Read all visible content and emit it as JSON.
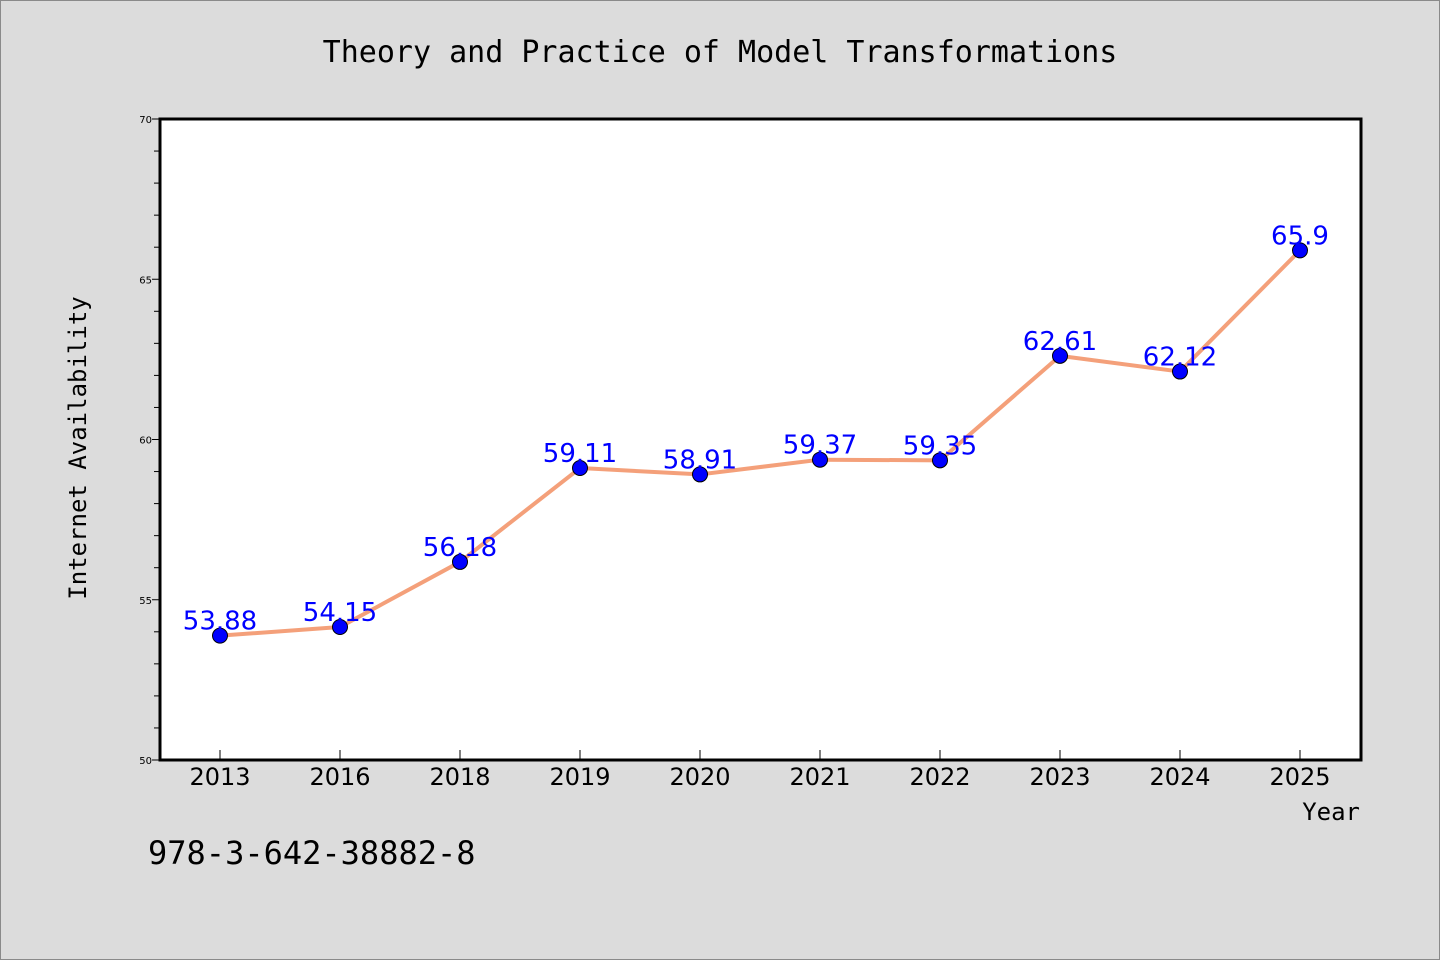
{
  "chart_data": {
    "type": "line",
    "title": "Theory and Practice of Model Transformations",
    "xlabel": "Year",
    "ylabel": "Internet Availability",
    "categories": [
      "2013",
      "2016",
      "2018",
      "2019",
      "2020",
      "2021",
      "2022",
      "2023",
      "2024",
      "2025"
    ],
    "series": [
      {
        "values": [
          53.88,
          54.15,
          56.18,
          59.11,
          58.91,
          59.37,
          59.35,
          62.61,
          62.12,
          65.9
        ],
        "labels": [
          "53.88",
          "54.15",
          "56.18",
          "59.11",
          "58.91",
          "59.37",
          "59.35",
          "62.61",
          "62.12",
          "65.9"
        ]
      }
    ],
    "ylim": [
      50,
      70
    ],
    "yticks": [
      "50",
      "55",
      "60",
      "65",
      "70"
    ],
    "grid": false,
    "legend": "none",
    "colors": {
      "line": "#f4a07a",
      "marker": "#0000ff",
      "label": "#0000ff",
      "background": "#dcdcdc",
      "plot_bg": "#ffffff"
    }
  },
  "annotation": "978-3-642-38882-8"
}
